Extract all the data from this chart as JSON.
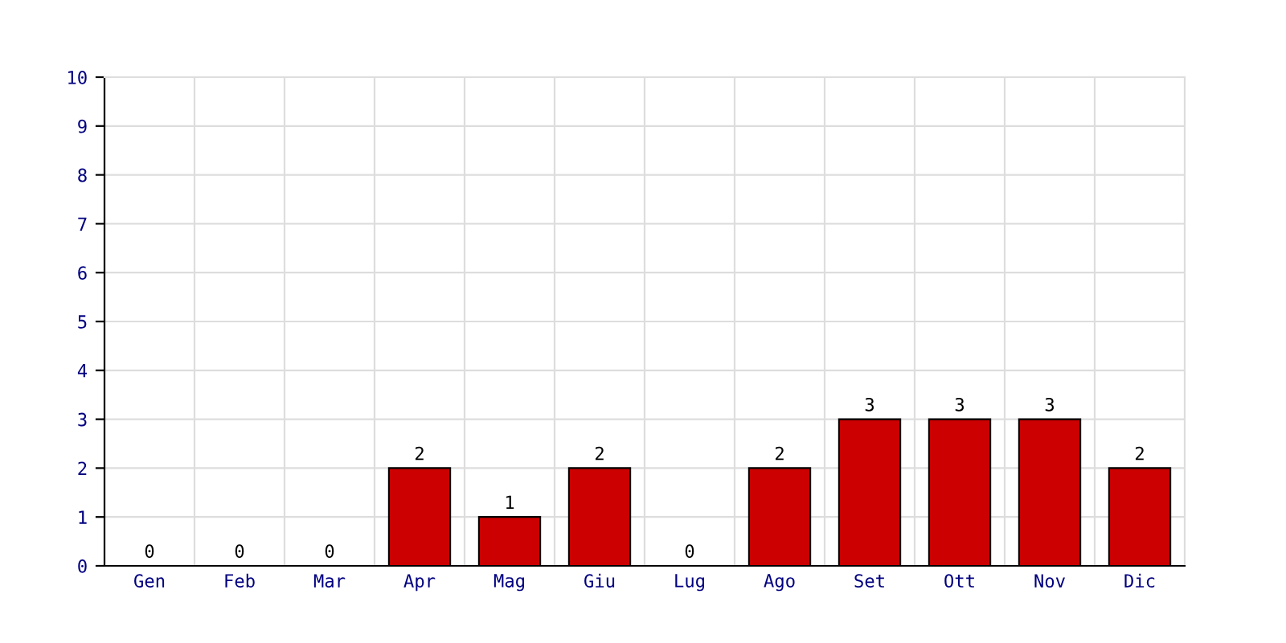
{
  "chart_data": {
    "type": "bar",
    "categories": [
      "Gen",
      "Feb",
      "Mar",
      "Apr",
      "Mag",
      "Giu",
      "Lug",
      "Ago",
      "Set",
      "Ott",
      "Nov",
      "Dic"
    ],
    "values": [
      0,
      0,
      0,
      2,
      1,
      2,
      0,
      2,
      3,
      3,
      3,
      2
    ],
    "color": "#cc0000",
    "ylim": [
      0,
      10
    ],
    "yticks": [
      0,
      1,
      2,
      3,
      4,
      5,
      6,
      7,
      8,
      9,
      10
    ],
    "grid": true,
    "data_labels": true
  }
}
